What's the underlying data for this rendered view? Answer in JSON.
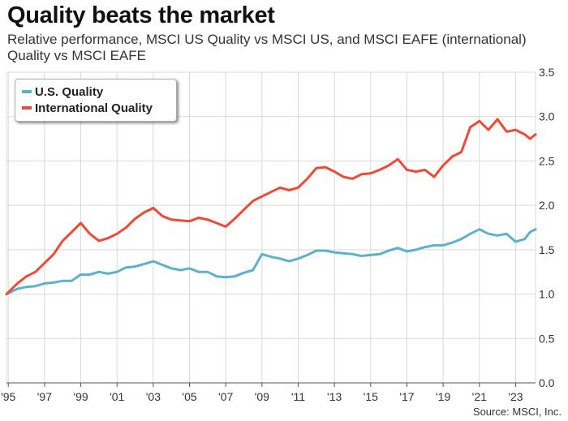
{
  "title": "Quality beats the market",
  "subtitle": "Relative performance, MSCI US Quality vs MSCI US, and MSCI EAFE (international) Quality vs MSCI EAFE",
  "source": "Source: MSCI, Inc.",
  "colors": {
    "us": "#5cb2cc",
    "intl": "#ef4a35",
    "grid": "#d9d9d9",
    "axis": "#555555"
  },
  "chart_data": {
    "type": "line",
    "title": "Quality beats the market",
    "xlabel": "",
    "ylabel": "",
    "x_tick_labels": [
      "'95",
      "'97",
      "'99",
      "'01",
      "'03",
      "'05",
      "'07",
      "'09",
      "'11",
      "'13",
      "'15",
      "'17",
      "'19",
      "'21",
      "'23"
    ],
    "x_tick_years": [
      1995,
      1997,
      1999,
      2001,
      2003,
      2005,
      2007,
      2009,
      2011,
      2013,
      2015,
      2017,
      2019,
      2021,
      2023
    ],
    "xlim": [
      1994.9,
      2024.1
    ],
    "ylim": [
      0,
      3.5
    ],
    "y_ticks": [
      "0.0",
      "0.5",
      "1.0",
      "1.5",
      "2.0",
      "2.5",
      "3.0",
      "3.5"
    ],
    "y_axis_side": "right",
    "grid": true,
    "legend": "top-left",
    "series": [
      {
        "name": "U.S. Quality",
        "color": "#5cb2cc",
        "points": [
          [
            1994.9,
            1.0
          ],
          [
            1995.5,
            1.06
          ],
          [
            1996.0,
            1.08
          ],
          [
            1996.5,
            1.09
          ],
          [
            1997.0,
            1.12
          ],
          [
            1997.5,
            1.13
          ],
          [
            1998.0,
            1.15
          ],
          [
            1998.5,
            1.15
          ],
          [
            1999.0,
            1.22
          ],
          [
            1999.5,
            1.22
          ],
          [
            2000.0,
            1.25
          ],
          [
            2000.5,
            1.23
          ],
          [
            2001.0,
            1.25
          ],
          [
            2001.5,
            1.3
          ],
          [
            2002.0,
            1.31
          ],
          [
            2002.5,
            1.34
          ],
          [
            2003.0,
            1.37
          ],
          [
            2003.5,
            1.33
          ],
          [
            2004.0,
            1.29
          ],
          [
            2004.5,
            1.27
          ],
          [
            2005.0,
            1.29
          ],
          [
            2005.5,
            1.25
          ],
          [
            2006.0,
            1.25
          ],
          [
            2006.5,
            1.2
          ],
          [
            2007.0,
            1.19
          ],
          [
            2007.5,
            1.2
          ],
          [
            2008.0,
            1.24
          ],
          [
            2008.5,
            1.27
          ],
          [
            2009.0,
            1.45
          ],
          [
            2009.5,
            1.42
          ],
          [
            2010.0,
            1.4
          ],
          [
            2010.5,
            1.37
          ],
          [
            2011.0,
            1.4
          ],
          [
            2011.5,
            1.44
          ],
          [
            2012.0,
            1.49
          ],
          [
            2012.5,
            1.49
          ],
          [
            2013.0,
            1.47
          ],
          [
            2013.5,
            1.46
          ],
          [
            2014.0,
            1.45
          ],
          [
            2014.5,
            1.43
          ],
          [
            2015.0,
            1.44
          ],
          [
            2015.5,
            1.45
          ],
          [
            2016.0,
            1.49
          ],
          [
            2016.5,
            1.52
          ],
          [
            2017.0,
            1.48
          ],
          [
            2017.5,
            1.5
          ],
          [
            2018.0,
            1.53
          ],
          [
            2018.5,
            1.55
          ],
          [
            2019.0,
            1.55
          ],
          [
            2019.5,
            1.58
          ],
          [
            2020.0,
            1.62
          ],
          [
            2020.5,
            1.68
          ],
          [
            2021.0,
            1.73
          ],
          [
            2021.5,
            1.68
          ],
          [
            2022.0,
            1.66
          ],
          [
            2022.5,
            1.68
          ],
          [
            2023.0,
            1.59
          ],
          [
            2023.5,
            1.62
          ],
          [
            2023.8,
            1.7
          ],
          [
            2024.1,
            1.73
          ]
        ]
      },
      {
        "name": "International Quality",
        "color": "#ef4a35",
        "points": [
          [
            1994.9,
            1.0
          ],
          [
            1995.5,
            1.12
          ],
          [
            1996.0,
            1.2
          ],
          [
            1996.5,
            1.25
          ],
          [
            1997.0,
            1.35
          ],
          [
            1997.5,
            1.45
          ],
          [
            1998.0,
            1.6
          ],
          [
            1998.5,
            1.7
          ],
          [
            1999.0,
            1.8
          ],
          [
            1999.5,
            1.68
          ],
          [
            2000.0,
            1.6
          ],
          [
            2000.5,
            1.63
          ],
          [
            2001.0,
            1.68
          ],
          [
            2001.5,
            1.75
          ],
          [
            2002.0,
            1.85
          ],
          [
            2002.5,
            1.92
          ],
          [
            2003.0,
            1.97
          ],
          [
            2003.5,
            1.88
          ],
          [
            2004.0,
            1.84
          ],
          [
            2004.5,
            1.83
          ],
          [
            2005.0,
            1.82
          ],
          [
            2005.5,
            1.86
          ],
          [
            2006.0,
            1.84
          ],
          [
            2006.5,
            1.8
          ],
          [
            2007.0,
            1.76
          ],
          [
            2007.5,
            1.85
          ],
          [
            2008.0,
            1.95
          ],
          [
            2008.5,
            2.05
          ],
          [
            2009.0,
            2.1
          ],
          [
            2009.5,
            2.15
          ],
          [
            2010.0,
            2.2
          ],
          [
            2010.5,
            2.17
          ],
          [
            2011.0,
            2.2
          ],
          [
            2011.5,
            2.3
          ],
          [
            2012.0,
            2.42
          ],
          [
            2012.5,
            2.43
          ],
          [
            2013.0,
            2.38
          ],
          [
            2013.5,
            2.32
          ],
          [
            2014.0,
            2.3
          ],
          [
            2014.5,
            2.35
          ],
          [
            2015.0,
            2.36
          ],
          [
            2015.5,
            2.4
          ],
          [
            2016.0,
            2.45
          ],
          [
            2016.5,
            2.52
          ],
          [
            2017.0,
            2.4
          ],
          [
            2017.5,
            2.38
          ],
          [
            2018.0,
            2.4
          ],
          [
            2018.5,
            2.32
          ],
          [
            2019.0,
            2.45
          ],
          [
            2019.5,
            2.55
          ],
          [
            2020.0,
            2.6
          ],
          [
            2020.5,
            2.88
          ],
          [
            2021.0,
            2.95
          ],
          [
            2021.5,
            2.85
          ],
          [
            2022.0,
            2.97
          ],
          [
            2022.5,
            2.83
          ],
          [
            2023.0,
            2.85
          ],
          [
            2023.5,
            2.8
          ],
          [
            2023.8,
            2.75
          ],
          [
            2024.1,
            2.8
          ]
        ]
      }
    ]
  }
}
